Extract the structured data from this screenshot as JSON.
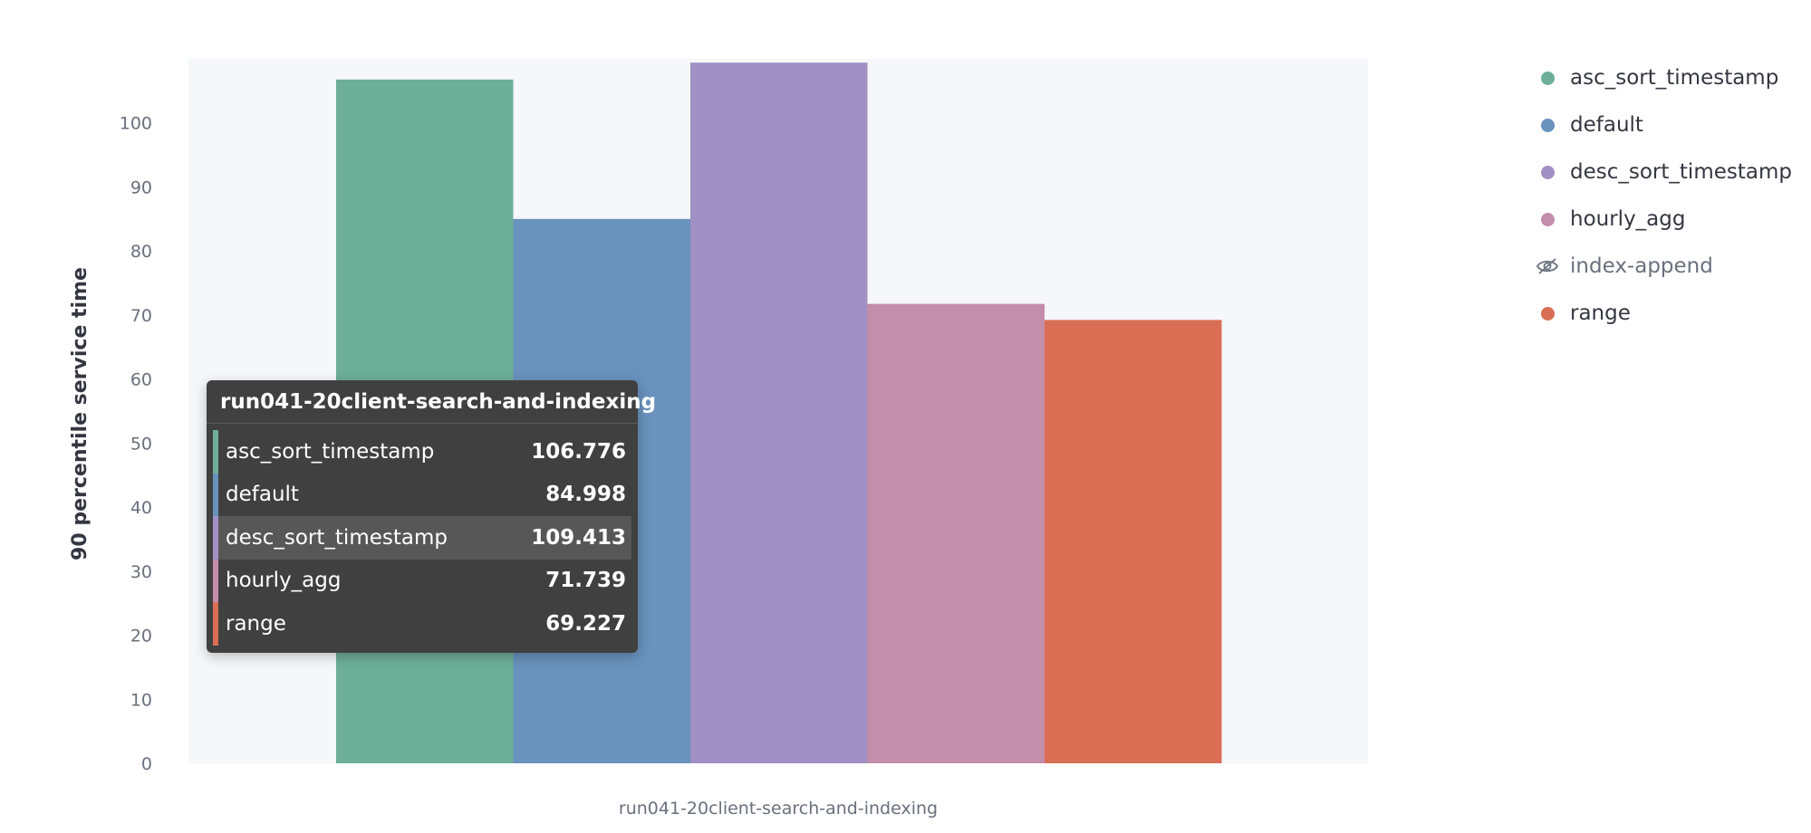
{
  "chart_data": {
    "type": "bar",
    "title": "",
    "categories": [
      "run041-20client-search-and-indexing"
    ],
    "xlabel": "",
    "ylabel": "90 percentile service time",
    "ylim": [
      0,
      110
    ],
    "yticks": [
      0,
      10,
      20,
      30,
      40,
      50,
      60,
      70,
      80,
      90,
      100
    ],
    "grid": false,
    "legend_position": "right",
    "series": [
      {
        "name": "asc_sort_timestamp",
        "values": [
          106.776
        ],
        "color": "#6daf98",
        "visible": true
      },
      {
        "name": "default",
        "values": [
          84.998
        ],
        "color": "#6992bd",
        "visible": true
      },
      {
        "name": "desc_sort_timestamp",
        "values": [
          109.413
        ],
        "color": "#a190c3",
        "visible": true
      },
      {
        "name": "hourly_agg",
        "values": [
          71.739
        ],
        "color": "#c38ea9",
        "visible": true
      },
      {
        "name": "index-append",
        "values": [
          null
        ],
        "color": "#b9a888",
        "visible": false
      },
      {
        "name": "range",
        "values": [
          69.227
        ],
        "color": "#d96e55",
        "visible": true
      }
    ]
  },
  "tooltip": {
    "title": "run041-20client-search-and-indexing",
    "rows": [
      {
        "label": "asc_sort_timestamp",
        "value": "106.776",
        "color": "#6daf98"
      },
      {
        "label": "default",
        "value": "84.998",
        "color": "#6992bd"
      },
      {
        "label": "desc_sort_timestamp",
        "value": "109.413",
        "color": "#a190c3",
        "active": true
      },
      {
        "label": "hourly_agg",
        "value": "71.739",
        "color": "#c38ea9"
      },
      {
        "label": "range",
        "value": "69.227",
        "color": "#d96e55"
      }
    ]
  },
  "colors": {
    "plot_background": "#f5f7fa",
    "hidden_series_text": "#69707d",
    "tooltip_background": "#404040"
  },
  "icons": {
    "hidden_series": "eye-closed-icon"
  }
}
